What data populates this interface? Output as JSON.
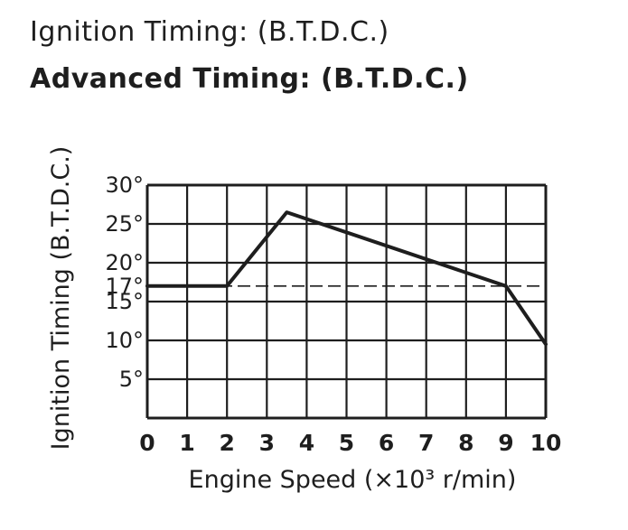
{
  "headings": {
    "line1": "Ignition Timing: (B.T.D.C.)",
    "line2": "Advanced Timing: (B.T.D.C.)"
  },
  "chart_data": {
    "type": "line",
    "title": "",
    "xlabel": "Engine Speed (×10³ r/min)",
    "ylabel": "Ignition Timing (B.T.D.C.)",
    "xlim": [
      0,
      10
    ],
    "ylim": [
      0,
      30
    ],
    "x_ticks": [
      "0",
      "1",
      "2",
      "3",
      "4",
      "5",
      "6",
      "7",
      "8",
      "9",
      "10"
    ],
    "y_tick_values": [
      5,
      10,
      15,
      17,
      20,
      25,
      30
    ],
    "y_tick_labels": [
      "5°",
      "10°",
      "15°",
      "17°",
      "20°",
      "25°",
      "30°"
    ],
    "grid": true,
    "series": [
      {
        "x": [
          0,
          2,
          3.5,
          9,
          10
        ],
        "y": [
          17,
          17,
          26.5,
          17,
          9.5
        ]
      }
    ],
    "colors": {
      "line": "#1e1e1e",
      "grid": "#1e1e1e"
    }
  }
}
